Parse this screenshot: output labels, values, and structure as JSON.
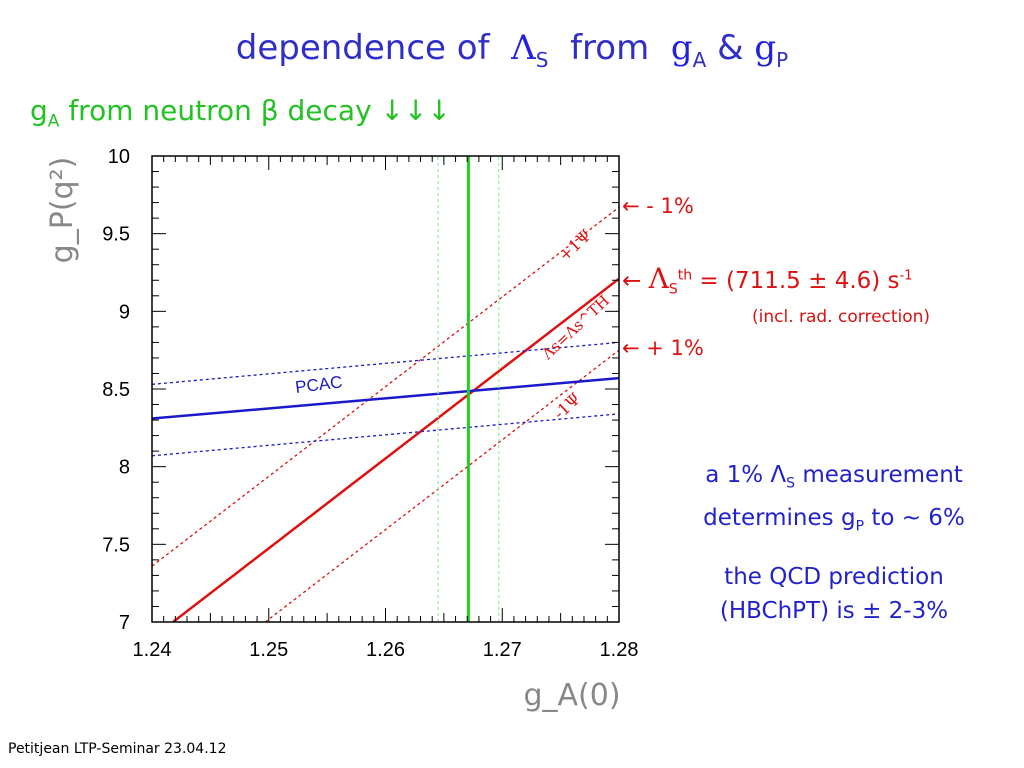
{
  "slide": {
    "title_part1": "dependence of",
    "title_lambda": "Λ",
    "title_lambda_sub": "S",
    "title_part2": "from",
    "title_ga": "g",
    "title_ga_sub": "A",
    "title_amp": "&",
    "title_gp": "g",
    "title_gp_sub": "P",
    "subtitle_g": "g",
    "subtitle_g_sub": "A",
    "subtitle_rest": "from neutron β decay ↓↓↓",
    "note1_line1": "a 1% Λ",
    "note1_line1_sub": "S",
    "note1_line1_end": "measurement",
    "note1_line2": "determines g",
    "note1_line2_sub": "P",
    "note1_line2_end": "to ~ 6%",
    "note2_line1": "the QCD prediction",
    "note2_line2": "(HBChPT)  is ± 2-3%",
    "footer": "Petitjean LTP-Seminar 23.04.12"
  },
  "annotations": {
    "minus1": "←  - 1%",
    "lambda_arrow": "←",
    "lambda": "Λ",
    "lambda_sub": "S",
    "lambda_sup": "th",
    "lambda_value": " = (711.5 ± 4.6) s",
    "lambda_value_sup": "-1",
    "radcorr": "(incl. rad. correction)",
    "plus1": "←  + 1%"
  },
  "colors": {
    "title": "#2f2fc8",
    "green": "#22cc22",
    "red": "#dd1111",
    "blue": "#1a1acc",
    "axis_label": "#888888"
  },
  "chart_data": {
    "type": "line",
    "xlabel": "g_A(0)",
    "ylabel": "g_P(q²)",
    "xlim": [
      1.24,
      1.28
    ],
    "ylim": [
      7,
      10
    ],
    "x_ticks": [
      "1.24",
      "1.25",
      "1.26",
      "1.27",
      "1.28"
    ],
    "y_ticks": [
      "7",
      "7.5",
      "8",
      "8.5",
      "9",
      "9.5",
      "10"
    ],
    "series": [
      {
        "name": "Λs=Λs^TH",
        "color": "#dd1111",
        "style": "solid",
        "x": [
          1.2418,
          1.28
        ],
        "y": [
          7.0,
          9.21
        ]
      },
      {
        "name": "+1Ψ",
        "color": "#dd1111",
        "style": "dotted",
        "x": [
          1.24,
          1.28
        ],
        "y": [
          7.36,
          9.67
        ]
      },
      {
        "name": "-1Ψ",
        "color": "#dd1111",
        "style": "dotted",
        "x": [
          1.2497,
          1.28
        ],
        "y": [
          7.0,
          8.75
        ]
      },
      {
        "name": "PCAC",
        "color": "#1a1acc",
        "style": "solid",
        "x": [
          1.24,
          1.28
        ],
        "y": [
          8.31,
          8.57
        ]
      },
      {
        "name": "",
        "color": "#1a1acc",
        "style": "dotted",
        "x": [
          1.24,
          1.28
        ],
        "y": [
          8.53,
          8.8
        ]
      },
      {
        "name": "",
        "color": "#1a1acc",
        "style": "dotted",
        "x": [
          1.24,
          1.28
        ],
        "y": [
          8.07,
          8.34
        ]
      },
      {
        "name": "",
        "color": "#22cc22",
        "style": "solid",
        "x": [
          1.2671,
          1.2671
        ],
        "y": [
          7,
          10
        ]
      },
      {
        "name": "",
        "color": "#99ee99",
        "style": "dotted",
        "x": [
          1.2645,
          1.2645
        ],
        "y": [
          7,
          10
        ]
      },
      {
        "name": "",
        "color": "#99ee99",
        "style": "dotted",
        "x": [
          1.2697,
          1.2697
        ],
        "y": [
          7,
          10
        ]
      }
    ],
    "line_labels": [
      "+1Ψ",
      "Λs=Λs^TH",
      "-1Ψ",
      "PCAC"
    ],
    "grid": false
  }
}
